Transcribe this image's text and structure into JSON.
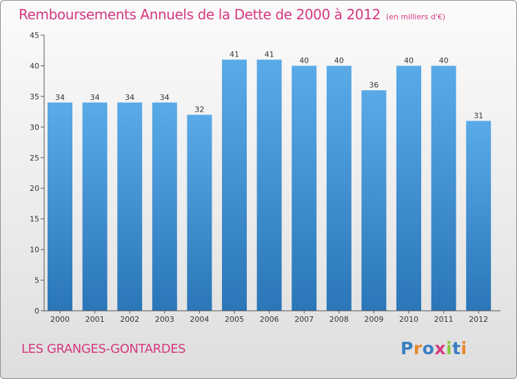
{
  "chart_data": {
    "type": "bar",
    "title": "Remboursements Annuels de la Dette de 2000 à 2012",
    "subtitle": "(en milliers d'€)",
    "categories": [
      "2000",
      "2001",
      "2002",
      "2003",
      "2004",
      "2005",
      "2006",
      "2007",
      "2008",
      "2009",
      "2010",
      "2011",
      "2012"
    ],
    "values": [
      34,
      34,
      34,
      34,
      32,
      41,
      41,
      40,
      40,
      36,
      40,
      40,
      31
    ],
    "ylim": [
      0,
      45
    ],
    "yticks": [
      0,
      5,
      10,
      15,
      20,
      25,
      30,
      35,
      40,
      45
    ],
    "grid": false,
    "xlabel": "",
    "ylabel": "",
    "bar_color_top": "#5aaae8",
    "bar_color_bottom": "#2a76b8"
  },
  "footer": {
    "commune": "LES GRANGES-GONTARDES"
  },
  "logo": {
    "text": "Proxiti",
    "letter_colors": [
      "#3a7fc2",
      "#e8872b",
      "#3a7fc2",
      "#d5387f",
      "#8bc63e",
      "#3a7fc2",
      "#e8872b"
    ]
  },
  "colors": {
    "title": "#d5387f",
    "axis": "#555555"
  }
}
